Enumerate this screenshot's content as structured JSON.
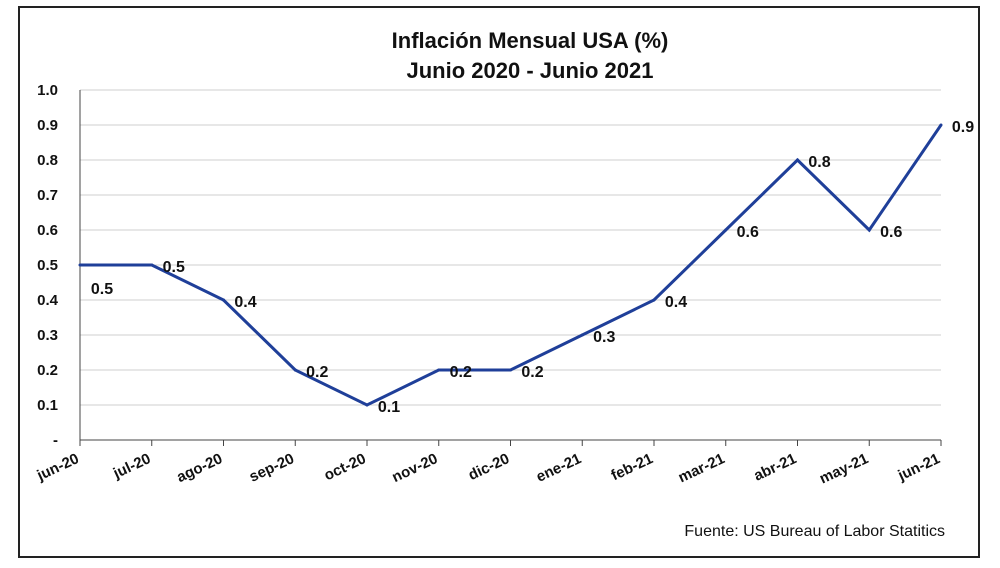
{
  "chart_data": {
    "type": "line",
    "title": "Inflación Mensual USA (%)",
    "subtitle": "Junio 2020 - Junio 2021",
    "categories": [
      "jun-20",
      "jul-20",
      "ago-20",
      "sep-20",
      "oct-20",
      "nov-20",
      "dic-20",
      "ene-21",
      "feb-21",
      "mar-21",
      "abr-21",
      "may-21",
      "jun-21"
    ],
    "series": [
      {
        "values": [
          0.5,
          0.5,
          0.4,
          0.2,
          0.1,
          0.2,
          0.2,
          0.3,
          0.4,
          0.6,
          0.8,
          0.6,
          0.9
        ],
        "color": "#1f3f99"
      }
    ],
    "data_labels": [
      "0.5",
      "0.5",
      "0.4",
      "0.2",
      "0.1",
      "0.2",
      "0.2",
      "0.3",
      "0.4",
      "0.6",
      "0.8",
      "0.6",
      "0.9"
    ],
    "yticks": [
      "-",
      "0.1",
      "0.2",
      "0.3",
      "0.4",
      "0.5",
      "0.6",
      "0.7",
      "0.8",
      "0.9",
      "1.0"
    ],
    "ylim": [
      0,
      1.0
    ],
    "grid": true,
    "source": "Fuente: US Bureau of Labor Statitics"
  }
}
